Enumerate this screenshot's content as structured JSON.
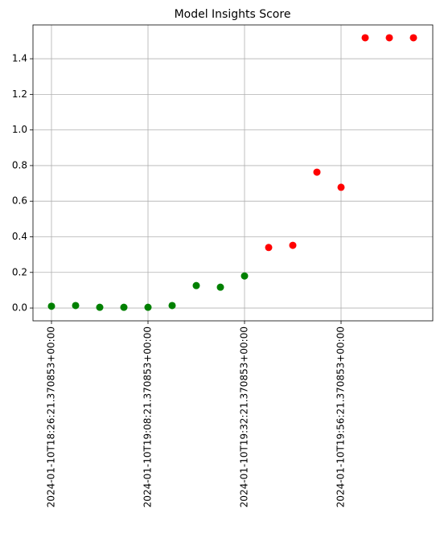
{
  "chart_data": {
    "type": "scatter",
    "title": "Model Insights Score",
    "categories": [
      "2024-01-10T18:26:21.370853+00:00",
      null,
      null,
      null,
      "2024-01-10T19:08:21.370853+00:00",
      null,
      null,
      null,
      "2024-01-10T19:32:21.370853+00:00",
      null,
      null,
      null,
      "2024-01-10T19:56:21.370853+00:00",
      null,
      null,
      null
    ],
    "values": [
      0.01,
      0.014,
      0.004,
      0.004,
      0.004,
      0.014,
      0.126,
      0.117,
      0.18,
      0.34,
      0.352,
      0.763,
      0.678,
      1.518,
      1.518,
      1.518
    ],
    "colors": [
      "green",
      "green",
      "green",
      "green",
      "green",
      "green",
      "green",
      "green",
      "green",
      "red",
      "red",
      "red",
      "red",
      "red",
      "red",
      "red"
    ],
    "ylim": [
      -0.072,
      1.59
    ],
    "yticks": [
      {
        "value": 0,
        "label": "0.0"
      },
      {
        "value": 0.2,
        "label": "0.2"
      },
      {
        "value": 0.4,
        "label": "0.4"
      },
      {
        "value": 0.6,
        "label": "0.6"
      },
      {
        "value": 0.8,
        "label": "0.8"
      },
      {
        "value": 1,
        "label": "1.0"
      },
      {
        "value": 1.2,
        "label": "1.2"
      },
      {
        "value": 1.4,
        "label": "1.4"
      }
    ],
    "grid": true
  }
}
